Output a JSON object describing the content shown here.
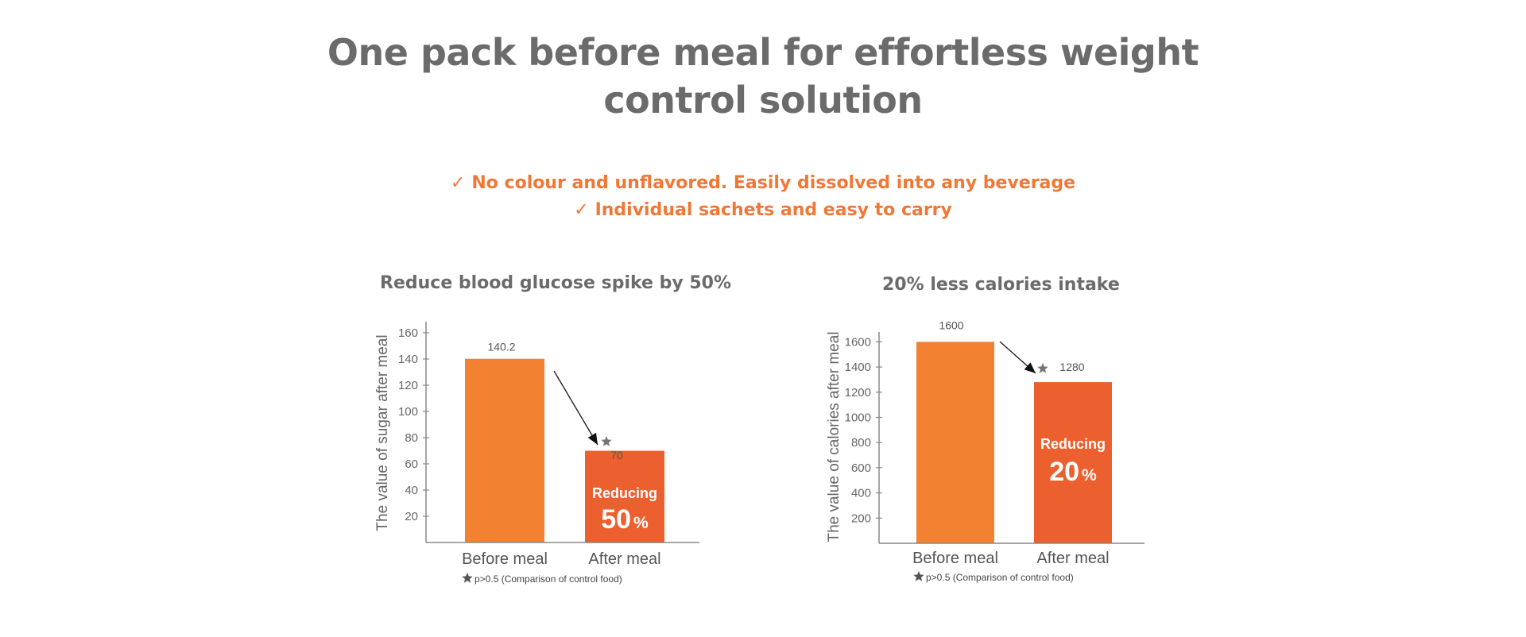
{
  "header": {
    "title_line1": "One pack before meal for effortless weight",
    "title_line2": "control solution"
  },
  "features": [
    {
      "check": "✓",
      "text": "No colour and unflavored. Easily dissolved into any beverage"
    },
    {
      "check": "✓",
      "text": "Individual sachets and easy to carry"
    }
  ],
  "colors": {
    "title": "#6b6b6b",
    "accent": "#f07836",
    "bar_before": "#f38132",
    "bar_after": "#ec5f2e",
    "axis": "#888888",
    "text": "#555555"
  },
  "chart_data": [
    {
      "type": "bar",
      "title": "Reduce blood glucose spike by 50%",
      "ylabel": "The value of sugar after meal",
      "xlabel": "",
      "categories": [
        "Before meal",
        "After meal"
      ],
      "values": [
        140.2,
        70
      ],
      "value_labels": [
        "140.2",
        "70"
      ],
      "ylim": [
        0,
        170
      ],
      "yticks": [
        20,
        40,
        60,
        80,
        100,
        120,
        140,
        160
      ],
      "grid": false,
      "annotation": {
        "label": "Reducing",
        "value": "50",
        "unit": "%"
      },
      "footnote": {
        "star": "★",
        "text": "p>0.5 (Comparison of control food)"
      }
    },
    {
      "type": "bar",
      "title": "20% less calories intake",
      "ylabel": "The value of calories after meal",
      "xlabel": "",
      "categories": [
        "Before meal",
        "After meal"
      ],
      "values": [
        1600,
        1280
      ],
      "value_labels": [
        "1600",
        "1280"
      ],
      "ylim": [
        0,
        1700
      ],
      "yticks": [
        200,
        400,
        600,
        800,
        1000,
        1200,
        1400,
        1600
      ],
      "grid": false,
      "annotation": {
        "label": "Reducing",
        "value": "20",
        "unit": "%"
      },
      "footnote": {
        "star": "★",
        "text": "p>0.5 (Comparison of control food)"
      }
    }
  ]
}
